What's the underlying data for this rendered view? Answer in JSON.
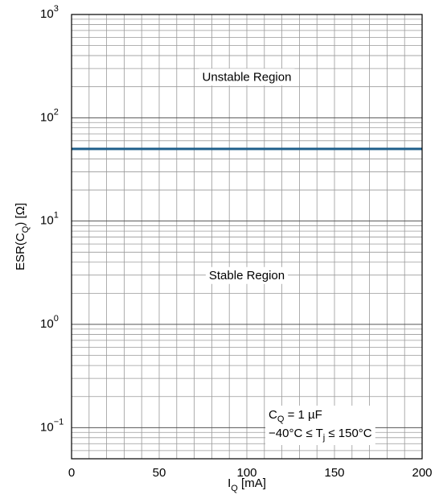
{
  "chart_data": {
    "type": "line",
    "xlabel": {
      "base": "I",
      "sub": "Q",
      "rest": " [mA]"
    },
    "ylabel": {
      "pre": "ESR(C",
      "sub": "Q",
      "post": ") [Ω]"
    },
    "xlim": [
      0,
      200
    ],
    "ylim": [
      0.05,
      1000
    ],
    "yscale": "log",
    "grid": true,
    "x_ticks": [
      0,
      50,
      100,
      150,
      200
    ],
    "x_tick_labels": [
      "0",
      "50",
      "100",
      "150",
      "200"
    ],
    "y_ticks": [
      {
        "value": 0.1,
        "base": "10",
        "exp": "−1"
      },
      {
        "value": 1,
        "base": "10",
        "exp": "0"
      },
      {
        "value": 10,
        "base": "10",
        "exp": "1"
      },
      {
        "value": 100,
        "base": "10",
        "exp": "2"
      },
      {
        "value": 1000,
        "base": "10",
        "exp": "3"
      }
    ],
    "series": [
      {
        "x": [
          0,
          200
        ],
        "y": [
          50,
          50
        ],
        "color": "#1f5f8b"
      }
    ],
    "annotations": {
      "unstable": {
        "text": "Unstable Region",
        "x": 100,
        "y": 250
      },
      "stable": {
        "text": "Stable Region",
        "x": 100,
        "y": 3
      },
      "conditions_line1": {
        "base": "C",
        "sub": "Q",
        "rest": " = 1 µF"
      },
      "conditions_line2": {
        "pre": "−40°C ≤ T",
        "sub": "j",
        "post": " ≤ 150°C"
      }
    }
  }
}
